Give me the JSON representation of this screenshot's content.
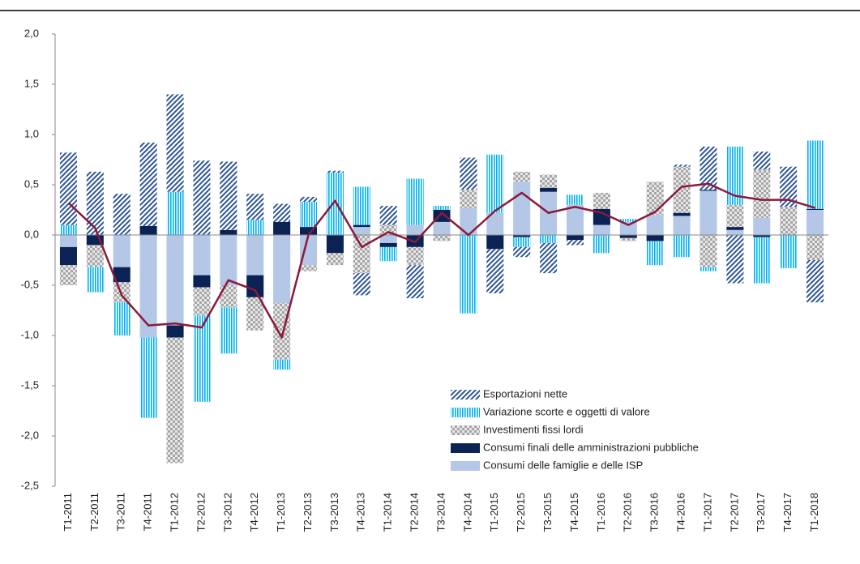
{
  "chart_data": {
    "type": "stacked-bar-line",
    "categories": [
      "T1-2011",
      "T2-2011",
      "T3-2011",
      "T4-2011",
      "T1-2012",
      "T2-2012",
      "T3-2012",
      "T4-2012",
      "T1-2013",
      "T2-2013",
      "T3-2013",
      "T4-2013",
      "T1-2014",
      "T2-2014",
      "T3-2014",
      "T4-2014",
      "T1-2015",
      "T2-2015",
      "T3-2015",
      "T4-2015",
      "T1-2016",
      "T2-2016",
      "T3-2016",
      "T4-2016",
      "T1-2017",
      "T2-2017",
      "T3-2017",
      "T4-2017",
      "T1-2018"
    ],
    "series": [
      {
        "name": "Consumi delle famiglie e delle ISP",
        "color": "#b4c7e7",
        "pattern": "solid",
        "values": [
          -0.12,
          0,
          -0.32,
          -1.02,
          -0.9,
          -0.4,
          -0.5,
          -0.4,
          -0.68,
          -0.3,
          0,
          0.08,
          -0.08,
          0.1,
          0.13,
          0.27,
          0.22,
          0.53,
          0.43,
          0.3,
          0.1,
          0.13,
          0.2,
          0.19,
          0.44,
          0.05,
          0.17,
          0,
          0.25
        ]
      },
      {
        "name": "Consumi finali delle amministrazioni pubbliche",
        "color": "#0b2255",
        "pattern": "solid",
        "values": [
          -0.18,
          -0.1,
          -0.15,
          0.09,
          -0.12,
          -0.12,
          0.05,
          -0.22,
          0.13,
          0.08,
          -0.18,
          0.02,
          -0.04,
          -0.12,
          0.12,
          0,
          -0.14,
          -0.02,
          0.04,
          -0.05,
          0.16,
          -0.03,
          -0.06,
          0.03,
          0.01,
          0.03,
          -0.02,
          0,
          0.01
        ]
      },
      {
        "name": "Investimenti fissi lordi",
        "color": "#a6a6a6",
        "pattern": "checker",
        "values": [
          -0.2,
          -0.22,
          -0.2,
          0,
          -1.25,
          -0.28,
          -0.22,
          -0.33,
          -0.56,
          -0.06,
          -0.12,
          -0.38,
          0.1,
          -0.18,
          -0.06,
          0.18,
          0,
          0.1,
          0.13,
          0,
          0.16,
          -0.03,
          0.33,
          0.46,
          -0.32,
          0.22,
          0.48,
          0.28,
          -0.25
        ]
      },
      {
        "name": "Variazione scorte e oggetti di valore",
        "color": "#00b0f0",
        "pattern": "vertical",
        "values": [
          0.1,
          -0.25,
          -0.33,
          -0.8,
          0.43,
          -0.86,
          -0.46,
          0.15,
          -0.1,
          0.25,
          0.62,
          0.38,
          -0.14,
          0.46,
          0.04,
          -0.78,
          0.58,
          -0.1,
          -0.08,
          0.1,
          -0.18,
          0.03,
          -0.24,
          -0.22,
          -0.04,
          0.58,
          -0.46,
          -0.33,
          0.68
        ]
      },
      {
        "name": "Esportazioni nette",
        "color": "#2e5597",
        "pattern": "diagonal",
        "values": [
          0.72,
          0.63,
          0.41,
          0.83,
          0.97,
          0.74,
          0.68,
          0.26,
          0.18,
          0.05,
          0.02,
          -0.22,
          0.19,
          -0.33,
          0,
          0.32,
          -0.44,
          -0.1,
          -0.3,
          -0.05,
          0,
          0,
          0,
          0.02,
          0.43,
          -0.48,
          0.18,
          0.4,
          -0.42
        ]
      },
      {
        "color": "#8b1a3a",
        "kind": "line",
        "values": [
          0.32,
          0.07,
          -0.6,
          -0.9,
          -0.88,
          -0.92,
          -0.45,
          -0.55,
          -1.02,
          0,
          0.34,
          -0.12,
          0.03,
          -0.07,
          0.22,
          0,
          0.24,
          0.42,
          0.22,
          0.28,
          0.22,
          0.1,
          0.23,
          0.48,
          0.51,
          0.39,
          0.35,
          0.35,
          0.27
        ]
      }
    ],
    "ylim": [
      -2.5,
      2.0
    ],
    "yticks": [
      {
        "value": -2.5,
        "label": "-2,5"
      },
      {
        "value": -2.0,
        "label": "-2,0"
      },
      {
        "value": -1.5,
        "label": "-1,5"
      },
      {
        "value": -1.0,
        "label": "-1,0"
      },
      {
        "value": -0.5,
        "label": "-0,5"
      },
      {
        "value": 0,
        "label": "0,0"
      },
      {
        "value": 0.5,
        "label": "0,5"
      },
      {
        "value": 1.0,
        "label": "1,0"
      },
      {
        "value": 1.5,
        "label": "1,5"
      },
      {
        "value": 2.0,
        "label": "2,0"
      }
    ],
    "grid": false
  }
}
